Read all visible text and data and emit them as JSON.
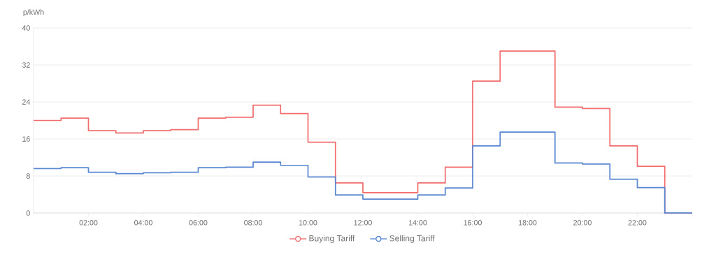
{
  "chart_data": {
    "type": "step",
    "ylabel": "p/kWh",
    "x": [
      0,
      1,
      2,
      3,
      4,
      5,
      6,
      7,
      8,
      9,
      10,
      11,
      12,
      13,
      14,
      15,
      16,
      17,
      18,
      19,
      20,
      21,
      22,
      23,
      24
    ],
    "series": [
      {
        "name": "Buying Tariff",
        "color": "#f26d6d",
        "values": [
          20.0,
          20.5,
          17.8,
          17.3,
          17.8,
          18.0,
          20.5,
          20.7,
          23.3,
          21.5,
          15.3,
          6.5,
          4.4,
          4.4,
          6.5,
          9.9,
          28.5,
          35.0,
          35.0,
          22.9,
          22.6,
          14.5,
          10.1,
          0,
          0
        ]
      },
      {
        "name": "Selling Tariff",
        "color": "#5a87d2",
        "values": [
          9.6,
          9.8,
          8.8,
          8.5,
          8.7,
          8.8,
          9.8,
          9.9,
          11.0,
          10.3,
          7.8,
          3.9,
          3.0,
          3.0,
          3.9,
          5.4,
          14.5,
          17.5,
          17.5,
          10.8,
          10.6,
          7.3,
          5.5,
          0,
          0
        ]
      }
    ],
    "xlim": [
      0,
      24
    ],
    "xticks": [
      {
        "value": 2,
        "label": "02:00"
      },
      {
        "value": 4,
        "label": "04:00"
      },
      {
        "value": 6,
        "label": "06:00"
      },
      {
        "value": 8,
        "label": "08:00"
      },
      {
        "value": 10,
        "label": "10:00"
      },
      {
        "value": 12,
        "label": "12:00"
      },
      {
        "value": 14,
        "label": "14:00"
      },
      {
        "value": 16,
        "label": "16:00"
      },
      {
        "value": 18,
        "label": "18:00"
      },
      {
        "value": 20,
        "label": "20:00"
      },
      {
        "value": 22,
        "label": "22:00"
      },
      {
        "value": 24,
        "label": null
      }
    ],
    "ylim": [
      0,
      40
    ],
    "yticks": [
      0,
      8,
      16,
      24,
      32,
      40
    ],
    "grid": "y",
    "legend": "bottom"
  }
}
